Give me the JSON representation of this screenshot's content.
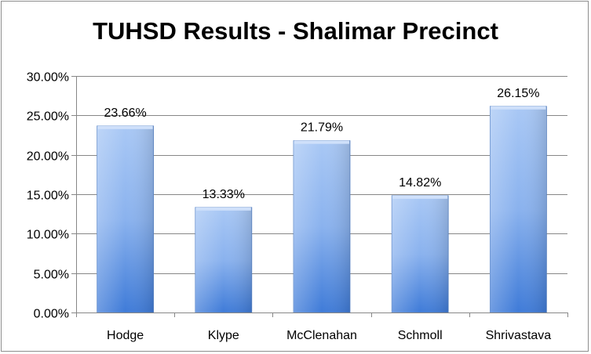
{
  "chart_data": {
    "type": "bar",
    "title": "TUHSD Results - Shalimar Precinct",
    "categories": [
      "Hodge",
      "Klype",
      "McClenahan",
      "Schmoll",
      "Shrivastava"
    ],
    "values": [
      23.66,
      13.33,
      21.79,
      14.82,
      26.15
    ],
    "value_labels": [
      "23.66%",
      "13.33%",
      "21.79%",
      "14.82%",
      "26.15%"
    ],
    "ylim": [
      0,
      30
    ],
    "yticks": [
      0,
      5,
      10,
      15,
      20,
      25,
      30
    ],
    "ytick_labels": [
      "0.00%",
      "5.00%",
      "10.00%",
      "15.00%",
      "20.00%",
      "25.00%",
      "30.00%"
    ],
    "xlabel": "",
    "ylabel": "",
    "grid": true,
    "legend": "none",
    "bar_color": "#7ea7e6"
  }
}
